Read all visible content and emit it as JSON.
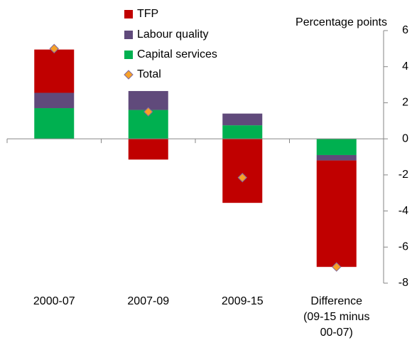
{
  "chart_data": {
    "type": "bar",
    "stacked": true,
    "y_axis_label": "Percentage points",
    "categories": [
      "2000-07",
      "2007-09",
      "2009-15",
      "Difference (09-15 minus 00-07)"
    ],
    "series": [
      {
        "name": "TFP",
        "color": "#c00000",
        "values": [
          2.4,
          -1.15,
          -3.55,
          -5.9
        ]
      },
      {
        "name": "Labour quality",
        "color": "#604a7b",
        "values": [
          0.85,
          1.05,
          0.65,
          -0.3
        ]
      },
      {
        "name": "Capital services",
        "color": "#00b050",
        "values": [
          1.7,
          1.6,
          0.75,
          -0.9
        ]
      }
    ],
    "total": {
      "name": "Total",
      "color": "#f7a128",
      "edge": "#7f6aa0",
      "values": [
        5.0,
        1.5,
        -2.15,
        -7.1
      ]
    },
    "ylim": [
      -8,
      6
    ],
    "yticks": [
      -8,
      -6,
      -4,
      -2,
      0,
      2,
      4,
      6
    ]
  }
}
